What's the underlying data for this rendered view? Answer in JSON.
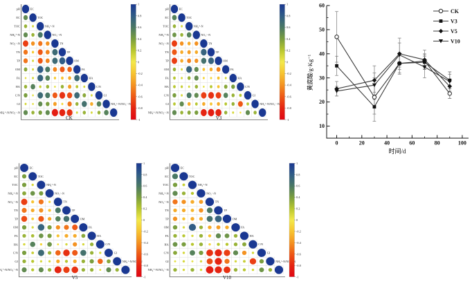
{
  "chart_data": [
    {
      "type": "line",
      "title": "",
      "xlabel": "时间/d",
      "ylabel": "黄腐酸/g·Kg⁻¹",
      "xlim": [
        -8,
        105
      ],
      "ylim": [
        5,
        60
      ],
      "xticks": [
        "0",
        "20",
        "40",
        "60",
        "80",
        "100"
      ],
      "yticks": [
        "10",
        "20",
        "30",
        "40",
        "50",
        "60"
      ],
      "x": [
        0,
        30,
        50,
        70,
        90
      ],
      "grid": false,
      "legend_position": "top-right",
      "line_color": "#3a3a3a",
      "series": [
        {
          "name": "CK",
          "marker": "open-circle",
          "values": [
            47,
            22,
            36,
            37,
            23.5
          ],
          "errors": [
            10.5,
            10,
            4,
            3,
            2
          ]
        },
        {
          "name": "V3",
          "marker": "filled-square",
          "values": [
            35,
            18,
            36,
            36.5,
            29
          ],
          "errors": [
            4,
            3,
            4.5,
            3,
            3.5
          ]
        },
        {
          "name": "V5",
          "marker": "filled-diamond",
          "values": [
            25.5,
            29,
            40,
            37.5,
            26.5
          ],
          "errors": [
            3,
            6,
            6.5,
            4,
            5
          ]
        },
        {
          "name": "V10",
          "marker": "filled-triangle-down",
          "values": [
            24.5,
            27,
            39.5,
            34.5,
            28.5
          ],
          "errors": [
            2,
            3,
            5,
            4.5,
            4
          ]
        }
      ]
    },
    {
      "type": "heatmap",
      "subtype": "correlation-matrix",
      "variables": [
        "pH",
        "EC",
        "TOC",
        "NH₄⁺-N",
        "NO₃⁻-N",
        "TN",
        "TP",
        "OM",
        "FA",
        "HA",
        "C/N",
        "GI",
        "NH₄⁺-N/NO₃⁻-N"
      ],
      "colorbar_range": [
        -1,
        1
      ],
      "colorbar_ticks": [
        "1",
        "0.8",
        "0.6",
        "0.4",
        "0.2",
        "0",
        "-0.2",
        "-0.4",
        "-0.6",
        "-0.8",
        "-1"
      ],
      "colormap": {
        "positive": "#1a3892",
        "zero": "#f0e94a",
        "negative": "#e00613"
      },
      "plots": [
        {
          "title": "CK",
          "matrix": [
            [
              1
            ],
            [
              0.5,
              1
            ],
            [
              0.3,
              0.1,
              1
            ],
            [
              0.5,
              0.3,
              0.6,
              1
            ],
            [
              -0.7,
              -0.4,
              -0.5,
              -0.4,
              1
            ],
            [
              -0.5,
              -0.15,
              -0.6,
              -0.45,
              0.7,
              1
            ],
            [
              -0.5,
              0.1,
              -0.6,
              -0.45,
              0.7,
              0.8,
              1
            ],
            [
              0.35,
              0.1,
              0.8,
              0.6,
              -0.45,
              -0.6,
              -0.55,
              1
            ],
            [
              0.05,
              0.1,
              0.75,
              0.55,
              -0.15,
              -0.2,
              -0.3,
              0.7,
              1
            ],
            [
              0.3,
              0.55,
              0.15,
              0.3,
              0.05,
              0.3,
              -0.35,
              0.2,
              0.1,
              1
            ],
            [
              0.4,
              0.05,
              0.7,
              0.6,
              -0.6,
              -0.75,
              -0.65,
              0.7,
              0.35,
              0.1,
              1
            ],
            [
              0.1,
              0.05,
              0.5,
              0.4,
              -0.35,
              -0.1,
              -0.5,
              0.3,
              0.65,
              -0.3,
              0.55,
              1
            ],
            [
              0.5,
              0.3,
              0.4,
              0.5,
              -0.85,
              -0.8,
              -0.75,
              0.1,
              0.3,
              0.1,
              0.3,
              0.55,
              1
            ]
          ]
        },
        {
          "title": "V3",
          "matrix": [
            [
              1
            ],
            [
              0.55,
              1
            ],
            [
              0.3,
              0.1,
              1
            ],
            [
              0.45,
              0.3,
              0.55,
              1
            ],
            [
              -0.7,
              -0.4,
              -0.3,
              -0.4,
              1
            ],
            [
              -0.6,
              -0.3,
              -0.35,
              -0.3,
              0.75,
              1
            ],
            [
              -0.7,
              -0.3,
              -0.45,
              -0.4,
              0.65,
              0.75,
              1
            ],
            [
              0.3,
              0.1,
              0.75,
              0.5,
              -0.2,
              -0.3,
              -0.45,
              1
            ],
            [
              0.2,
              0.1,
              0.3,
              0.5,
              -0.1,
              -0.1,
              -0.2,
              0.1,
              1
            ],
            [
              0.2,
              0.15,
              0.1,
              0.3,
              0.05,
              0.2,
              -0.2,
              0.35,
              0.4,
              1
            ],
            [
              0.4,
              0.1,
              0.6,
              0.5,
              -0.7,
              -0.75,
              -0.7,
              0.55,
              0.3,
              0.2,
              1
            ],
            [
              0.2,
              0.5,
              -0.3,
              0.2,
              -0.3,
              -0.2,
              -0.3,
              0.2,
              0.3,
              -0.6,
              0.2,
              1
            ],
            [
              0.5,
              0.3,
              0.35,
              0.4,
              -0.8,
              -0.85,
              -0.8,
              0.3,
              0.1,
              -0.05,
              0.5,
              0.3,
              1
            ]
          ]
        },
        {
          "title": "V5",
          "matrix": [
            [
              1
            ],
            [
              0.4,
              1
            ],
            [
              0.4,
              0.1,
              1
            ],
            [
              0.35,
              0.45,
              0.4,
              1
            ],
            [
              -0.7,
              -0.2,
              -0.5,
              -0.1,
              1
            ],
            [
              -0.5,
              -0.3,
              -0.4,
              -0.2,
              0.6,
              1
            ],
            [
              -0.65,
              -0.15,
              -0.6,
              -0.3,
              0.55,
              0.65,
              1
            ],
            [
              0.4,
              0.1,
              0.75,
              0.4,
              -0.4,
              -0.5,
              -0.6,
              1
            ],
            [
              0.3,
              0.25,
              0.45,
              0.4,
              -0.2,
              -0.3,
              -0.3,
              0.35,
              1
            ],
            [
              0.1,
              0.55,
              -0.1,
              0.45,
              -0.05,
              0.1,
              -0.4,
              0.1,
              0.3,
              1
            ],
            [
              0.4,
              0.15,
              0.7,
              0.3,
              -0.55,
              -0.75,
              -0.6,
              0.65,
              0.3,
              0.1,
              1
            ],
            [
              0.3,
              0.2,
              0.1,
              0.1,
              -0.3,
              0.2,
              -0.3,
              0.3,
              0.4,
              -0.55,
              0.35,
              1
            ],
            [
              0.5,
              0.2,
              0.5,
              0.3,
              -0.8,
              -0.7,
              -0.75,
              0.3,
              0.3,
              0.05,
              0.5,
              0.3,
              1
            ]
          ]
        },
        {
          "title": "V10",
          "matrix": [
            [
              1
            ],
            [
              0.6,
              1
            ],
            [
              0.4,
              0.15,
              1
            ],
            [
              0.5,
              0.3,
              0.2,
              1
            ],
            [
              -0.5,
              -0.4,
              -0.3,
              -0.35,
              1
            ],
            [
              -0.3,
              -0.3,
              -0.25,
              -0.4,
              0.6,
              1
            ],
            [
              -0.4,
              -0.2,
              -0.3,
              -0.3,
              0.65,
              0.75,
              1
            ],
            [
              0.4,
              0.1,
              0.8,
              0.3,
              -0.3,
              -0.35,
              -0.3,
              1
            ],
            [
              0.3,
              0.2,
              0.1,
              0.3,
              -0.2,
              0.5,
              0.45,
              0.3,
              1
            ],
            [
              0.45,
              0.4,
              0.2,
              0.3,
              -0.1,
              0.2,
              0.2,
              0.3,
              0.35,
              1
            ],
            [
              0.35,
              0.1,
              0.55,
              0.4,
              -0.75,
              -0.8,
              -0.7,
              0.5,
              -0.4,
              0.1,
              1
            ],
            [
              0.05,
              0.1,
              0.05,
              0.1,
              -0.65,
              -0.8,
              -0.5,
              0.1,
              0.15,
              -0.7,
              0.4,
              1
            ],
            [
              0.3,
              0.1,
              0.3,
              0.1,
              -0.85,
              -0.8,
              -0.75,
              0.3,
              0.2,
              0.1,
              0.45,
              0.3,
              1
            ]
          ]
        }
      ]
    }
  ]
}
